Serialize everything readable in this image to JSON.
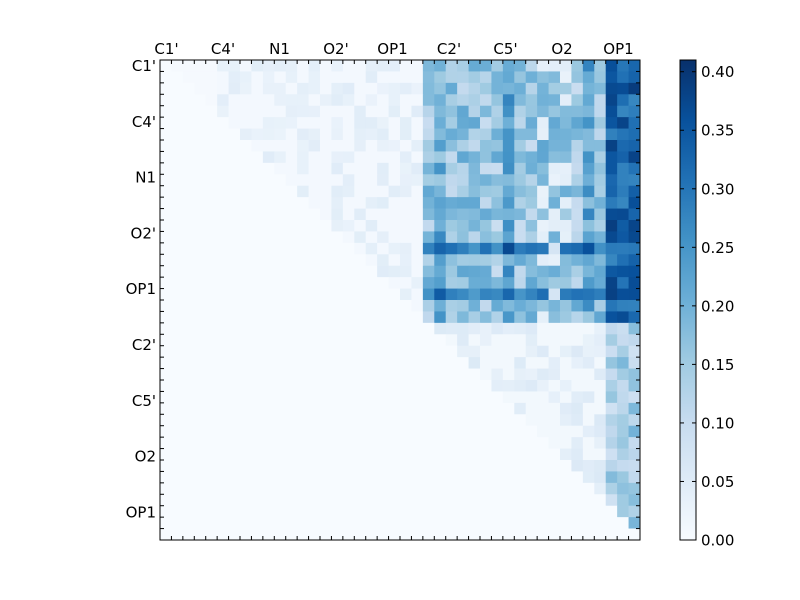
{
  "chart_data": {
    "type": "heatmap",
    "title": "",
    "xlabel": "",
    "ylabel": "",
    "atom_labels": [
      "C1'",
      "C4'",
      "N1",
      "O2'",
      "OP1",
      "C2'",
      "C5'",
      "O2",
      "OP1"
    ],
    "x_tick_labels": [
      "C1'",
      "C4'",
      "N1",
      "O2'",
      "OP1",
      "C2'",
      "C5'",
      "O2",
      "OP1"
    ],
    "y_tick_labels": [
      "C1'",
      "C4'",
      "N1",
      "O2'",
      "OP1",
      "C2'",
      "C5'",
      "O2",
      "OP1"
    ],
    "grid_size": 42,
    "group_size": 5,
    "value_range": [
      0,
      0.41
    ],
    "colorbar": {
      "ticks": [
        "0.00",
        "0.05",
        "0.10",
        "0.15",
        "0.20",
        "0.25",
        "0.30",
        "0.35",
        "0.40"
      ],
      "tick_values": [
        0,
        0.05,
        0.1,
        0.15,
        0.2,
        0.25,
        0.3,
        0.35,
        0.4
      ],
      "min": 0,
      "max": 0.41
    },
    "colormap": [
      "#f7fbff",
      "#deebf7",
      "#c6dbef",
      "#9ecae1",
      "#6baed6",
      "#4292c6",
      "#2171b5",
      "#08519c",
      "#08306b"
    ],
    "upper_triangle_only": true,
    "block_levels": {
      "left_block": 0.03,
      "right_upper_block": 0.17,
      "right_upper_block_highlight_row": 0.29,
      "lower_right_block": 0.05,
      "last_columns": 0.34
    },
    "strong_rows": [
      16,
      20
    ],
    "strong_cols": [
      24,
      30,
      37,
      41
    ]
  }
}
